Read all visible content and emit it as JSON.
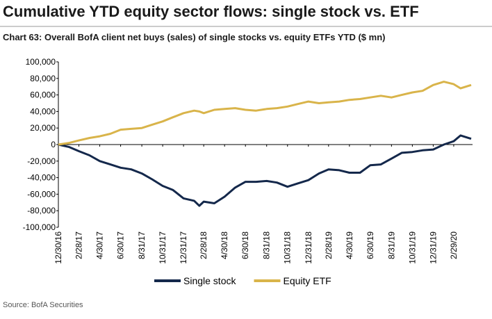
{
  "chart_data": {
    "type": "line",
    "title": "Cumulative YTD equity sector flows: single stock vs. ETF",
    "subtitle": "Chart 63: Overall BofA client net buys (sales) of single stocks vs. equity ETFs YTD ($ mn)",
    "source": "Source: BofA Securities",
    "x": [
      "2016-12-30",
      "2017-01-31",
      "2017-02-28",
      "2017-03-31",
      "2017-04-30",
      "2017-05-31",
      "2017-06-30",
      "2017-07-31",
      "2017-08-31",
      "2017-09-30",
      "2017-10-31",
      "2017-11-30",
      "2017-12-31",
      "2018-01-31",
      "2018-02-15",
      "2018-02-28",
      "2018-03-31",
      "2018-04-30",
      "2018-05-31",
      "2018-06-30",
      "2018-07-31",
      "2018-08-31",
      "2018-09-30",
      "2018-10-31",
      "2018-11-30",
      "2018-12-31",
      "2019-01-31",
      "2019-02-28",
      "2019-03-31",
      "2019-04-30",
      "2019-05-31",
      "2019-06-30",
      "2019-07-31",
      "2019-08-31",
      "2019-09-30",
      "2019-10-31",
      "2019-11-30",
      "2019-12-31",
      "2020-01-31",
      "2020-02-29",
      "2020-03-20",
      "2020-04-20"
    ],
    "series": [
      {
        "name": "Single stock",
        "color": "#14284b",
        "values": [
          0,
          -3000,
          -8000,
          -13000,
          -20000,
          -24000,
          -28000,
          -30000,
          -35000,
          -42000,
          -50000,
          -55000,
          -65000,
          -68000,
          -74000,
          -69000,
          -71000,
          -63000,
          -52000,
          -45000,
          -45000,
          -44000,
          -46000,
          -51000,
          -47000,
          -43000,
          -35000,
          -30000,
          -31000,
          -34000,
          -34000,
          -25000,
          -24000,
          -17000,
          -10000,
          -9000,
          -7000,
          -6000,
          0,
          4000,
          11000,
          7000
        ]
      },
      {
        "name": "Equity ETF",
        "color": "#d9b44a",
        "values": [
          0,
          2000,
          5000,
          8000,
          10000,
          13000,
          18000,
          19000,
          20000,
          24000,
          28000,
          33000,
          38000,
          41000,
          40000,
          38000,
          42000,
          43000,
          44000,
          42000,
          41000,
          43000,
          44000,
          46000,
          49000,
          52000,
          50000,
          51000,
          52000,
          54000,
          55000,
          57000,
          59000,
          57000,
          60000,
          63000,
          65000,
          72000,
          76000,
          73000,
          68000,
          72000
        ]
      }
    ],
    "xlim": [
      "2016-12-30",
      "2020-04-24"
    ],
    "xticks": [
      {
        "value": "2016-12-30",
        "label": "12/30/16"
      },
      {
        "value": "2017-02-28",
        "label": "2/28/17"
      },
      {
        "value": "2017-04-30",
        "label": "4/30/17"
      },
      {
        "value": "2017-06-30",
        "label": "6/30/17"
      },
      {
        "value": "2017-08-31",
        "label": "8/31/17"
      },
      {
        "value": "2017-10-31",
        "label": "10/31/17"
      },
      {
        "value": "2017-12-31",
        "label": "12/31/17"
      },
      {
        "value": "2018-02-28",
        "label": "2/28/18"
      },
      {
        "value": "2018-04-30",
        "label": "4/30/18"
      },
      {
        "value": "2018-06-30",
        "label": "6/30/18"
      },
      {
        "value": "2018-08-31",
        "label": "8/31/18"
      },
      {
        "value": "2018-10-31",
        "label": "10/31/18"
      },
      {
        "value": "2018-12-31",
        "label": "12/31/18"
      },
      {
        "value": "2019-02-28",
        "label": "2/28/19"
      },
      {
        "value": "2019-04-30",
        "label": "4/30/19"
      },
      {
        "value": "2019-06-30",
        "label": "6/30/19"
      },
      {
        "value": "2019-08-31",
        "label": "8/31/19"
      },
      {
        "value": "2019-10-31",
        "label": "10/31/19"
      },
      {
        "value": "2019-12-31",
        "label": "12/31/19"
      },
      {
        "value": "2020-02-29",
        "label": "2/29/20"
      }
    ],
    "ylim": [
      -100000,
      100000
    ],
    "yticks": [
      {
        "value": 100000,
        "label": "100,000"
      },
      {
        "value": 80000,
        "label": "80,000"
      },
      {
        "value": 60000,
        "label": "60,000"
      },
      {
        "value": 40000,
        "label": "40,000"
      },
      {
        "value": 20000,
        "label": "20,000"
      },
      0,
      {
        "value": -20000,
        "label": "-20,000"
      },
      {
        "value": -40000,
        "label": "-40,000"
      },
      {
        "value": -60000,
        "label": "-60,000"
      },
      {
        "value": -80000,
        "label": "-80,000"
      },
      {
        "value": -100000,
        "label": "-100,000"
      }
    ],
    "grid": false
  }
}
